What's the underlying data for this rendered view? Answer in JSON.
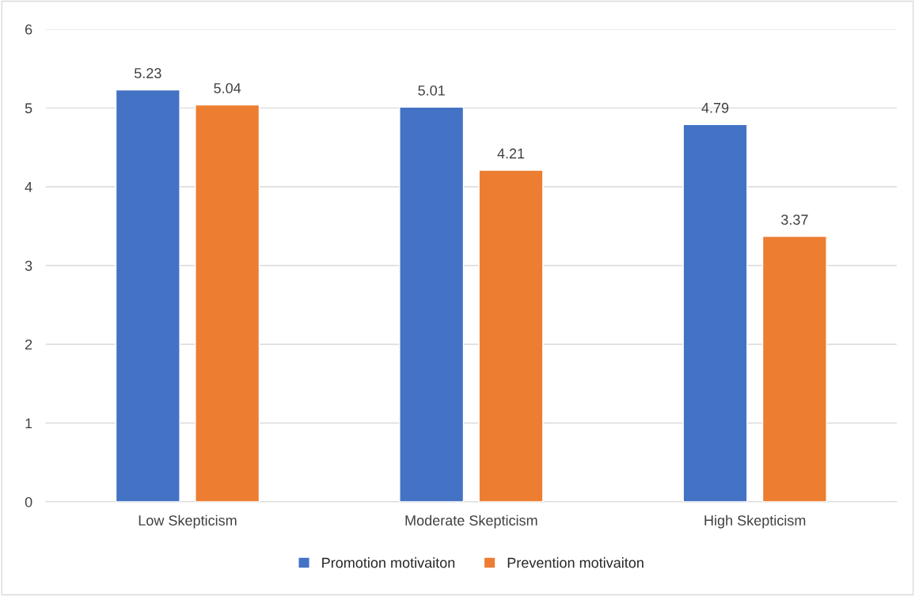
{
  "chart_data": {
    "type": "bar",
    "categories": [
      "Low Skepticism",
      "Moderate Skepticism",
      "High Skepticism"
    ],
    "series": [
      {
        "name": "Promotion motivaiton",
        "color": "#4472c4",
        "values": [
          5.23,
          5.01,
          4.79
        ]
      },
      {
        "name": "Prevention motivaiton",
        "color": "#ed7d31",
        "values": [
          5.04,
          4.21,
          3.37
        ]
      }
    ],
    "ylim": [
      0,
      6
    ],
    "yticks": [
      0,
      1,
      2,
      3,
      4,
      5,
      6
    ],
    "grid": "y",
    "legend": "bottom",
    "data_labels": true
  }
}
